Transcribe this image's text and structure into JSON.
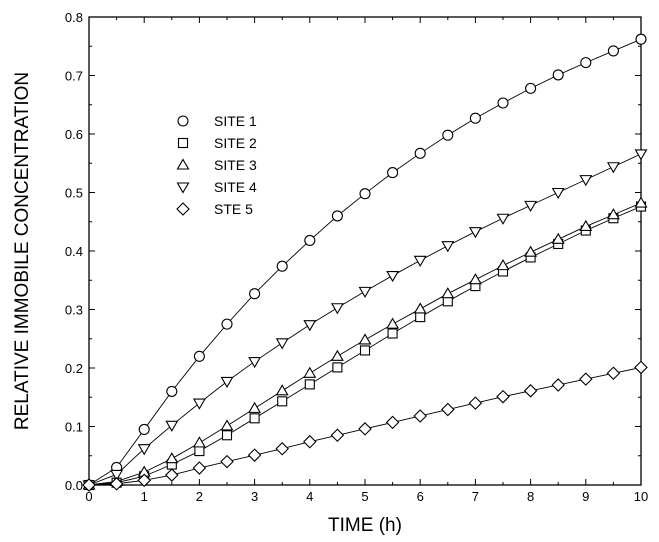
{
  "chart_data": {
    "type": "line",
    "title": "",
    "xlabel": "TIME (h)",
    "ylabel": "RELATIVE IMMOBILE CONCENTRATION",
    "xlim": [
      0,
      10
    ],
    "ylim": [
      0,
      0.8
    ],
    "x_ticks": [
      "0",
      "1",
      "2",
      "3",
      "4",
      "5",
      "6",
      "7",
      "8",
      "9",
      "10"
    ],
    "y_ticks": [
      "0.0",
      "0.1",
      "0.2",
      "0.3",
      "0.4",
      "0.5",
      "0.6",
      "0.7",
      "0.8"
    ],
    "grid": false,
    "legend_position": "upper-left",
    "x": [
      0,
      0.5,
      1,
      1.5,
      2,
      2.5,
      3,
      3.5,
      4,
      4.5,
      5,
      5.5,
      6,
      6.5,
      7,
      7.5,
      8,
      8.5,
      9,
      9.5,
      10
    ],
    "series": [
      {
        "name": "SITE 1",
        "marker": "circle",
        "values": [
          0,
          0.03,
          0.095,
          0.16,
          0.22,
          0.275,
          0.327,
          0.374,
          0.418,
          0.46,
          0.498,
          0.534,
          0.567,
          0.598,
          0.627,
          0.653,
          0.678,
          0.701,
          0.722,
          0.742,
          0.762
        ]
      },
      {
        "name": "SITE 2",
        "marker": "square",
        "values": [
          0,
          0.004,
          0.015,
          0.035,
          0.058,
          0.085,
          0.114,
          0.143,
          0.172,
          0.201,
          0.23,
          0.259,
          0.287,
          0.314,
          0.34,
          0.365,
          0.389,
          0.412,
          0.435,
          0.456,
          0.476
        ]
      },
      {
        "name": "SITE 3",
        "marker": "triangle-up",
        "values": [
          0,
          0.006,
          0.022,
          0.045,
          0.072,
          0.101,
          0.131,
          0.161,
          0.191,
          0.22,
          0.248,
          0.275,
          0.301,
          0.327,
          0.351,
          0.375,
          0.398,
          0.42,
          0.442,
          0.462,
          0.482
        ]
      },
      {
        "name": "SITE 4",
        "marker": "triangle-down",
        "values": [
          0,
          0.018,
          0.062,
          0.102,
          0.14,
          0.177,
          0.211,
          0.243,
          0.274,
          0.303,
          0.331,
          0.358,
          0.384,
          0.409,
          0.433,
          0.456,
          0.478,
          0.5,
          0.522,
          0.544,
          0.566
        ]
      },
      {
        "name": "STE 5",
        "marker": "diamond",
        "values": [
          0,
          0.002,
          0.008,
          0.017,
          0.029,
          0.04,
          0.051,
          0.062,
          0.074,
          0.085,
          0.096,
          0.107,
          0.118,
          0.129,
          0.14,
          0.151,
          0.161,
          0.171,
          0.181,
          0.191,
          0.201
        ]
      }
    ]
  }
}
